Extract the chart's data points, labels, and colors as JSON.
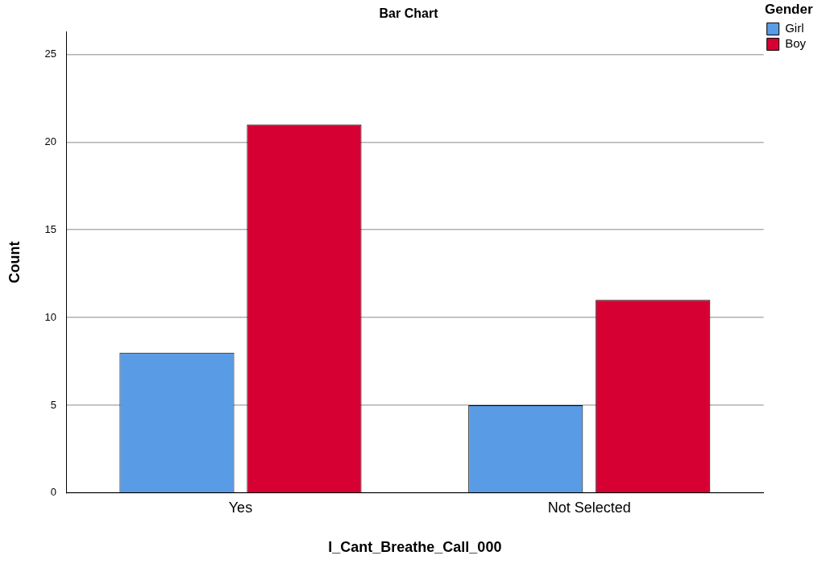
{
  "chart_data": {
    "type": "bar",
    "title": "Bar Chart",
    "xlabel": "I_Cant_Breathe_Call_000",
    "ylabel": "Count",
    "legend_title": "Gender",
    "categories": [
      "Yes",
      "Not Selected"
    ],
    "series": [
      {
        "name": "Girl",
        "color": "#5a9be6",
        "values": [
          8,
          5
        ]
      },
      {
        "name": "Boy",
        "color": "#d60032",
        "values": [
          21,
          11
        ]
      }
    ],
    "ylim": [
      0,
      26.3
    ],
    "yticks": [
      0,
      5,
      10,
      15,
      20,
      25
    ],
    "grid": "y",
    "legend": "top right"
  }
}
